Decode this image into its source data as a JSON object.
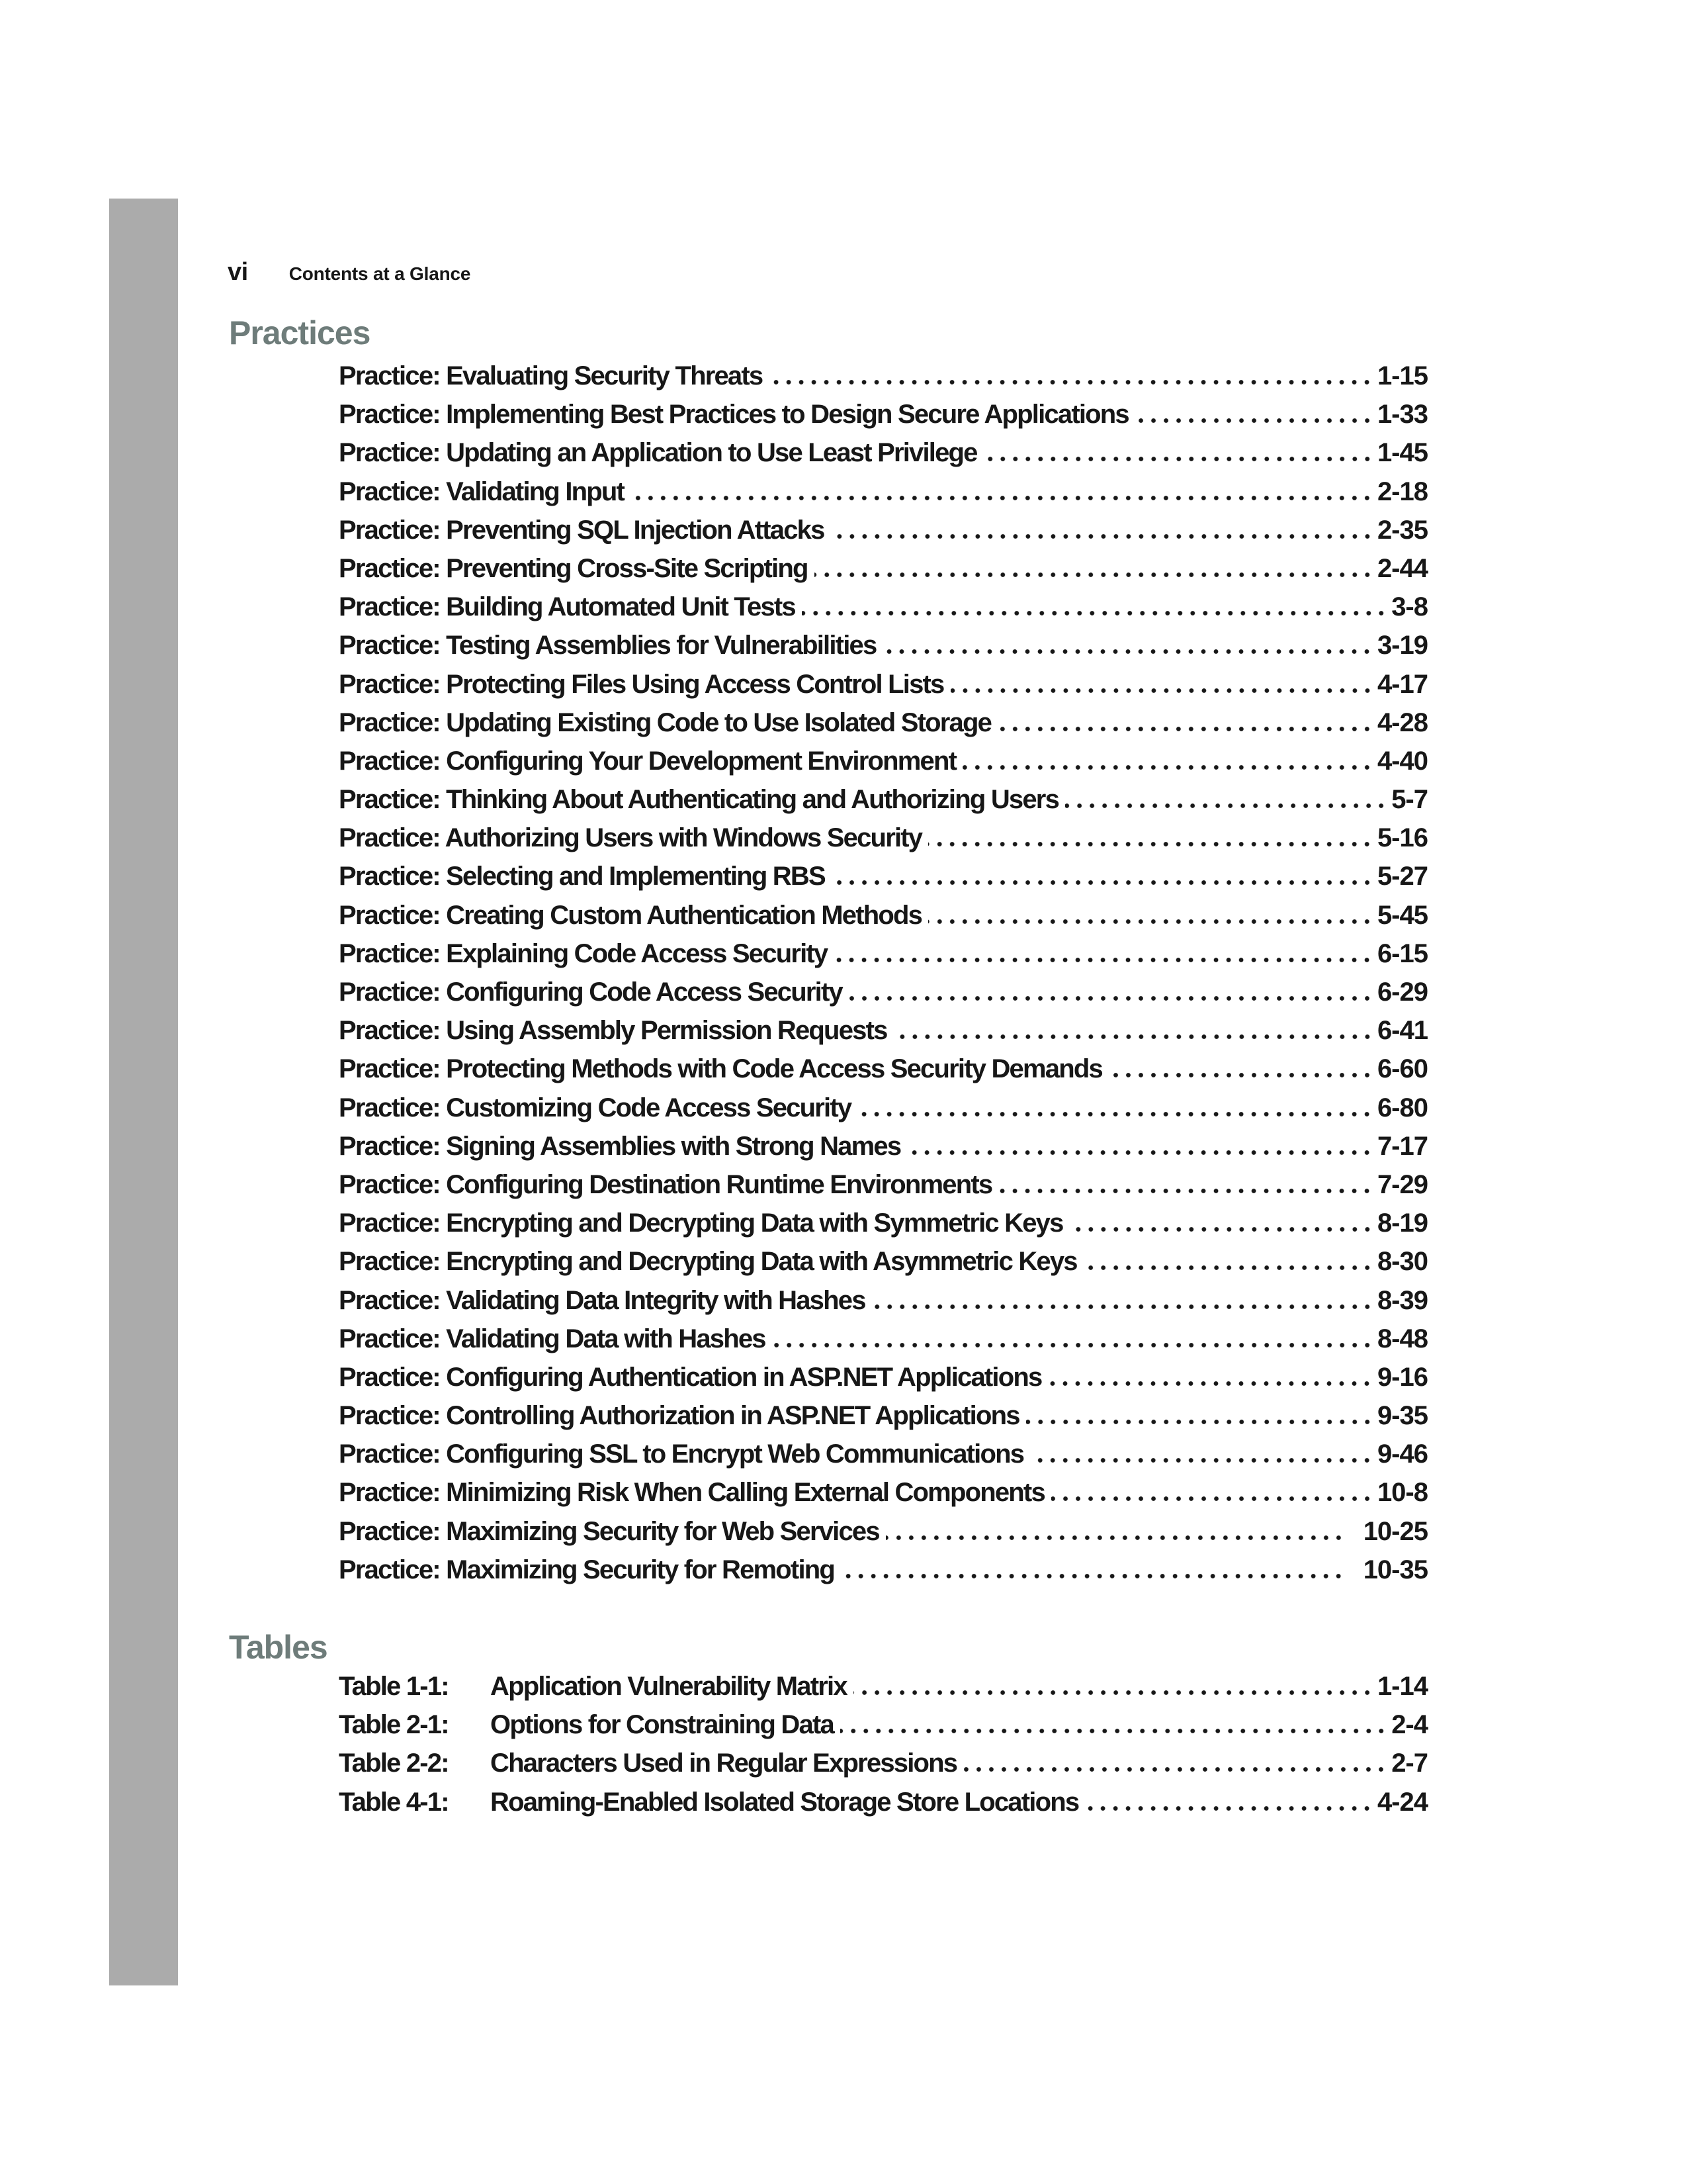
{
  "header": {
    "page_number": "vi",
    "title": "Contents at a Glance"
  },
  "practices": {
    "heading": "Practices",
    "entries": [
      {
        "title": "Practice: Evaluating Security Threats",
        "page": "1-15"
      },
      {
        "title": "Practice: Implementing Best Practices to Design Secure Applications",
        "page": "1-33"
      },
      {
        "title": "Practice: Updating an Application to Use Least Privilege",
        "page": "1-45"
      },
      {
        "title": "Practice: Validating Input",
        "page": "2-18"
      },
      {
        "title": "Practice: Preventing SQL Injection Attacks",
        "page": "2-35"
      },
      {
        "title": "Practice: Preventing Cross-Site Scripting",
        "page": "2-44"
      },
      {
        "title": "Practice: Building Automated Unit Tests",
        "page": "3-8"
      },
      {
        "title": "Practice: Testing Assemblies for Vulnerabilities",
        "page": "3-19"
      },
      {
        "title": "Practice: Protecting Files Using Access Control Lists",
        "page": "4-17"
      },
      {
        "title": "Practice: Updating Existing Code to Use Isolated Storage",
        "page": "4-28"
      },
      {
        "title": "Practice: Configuring Your Development Environment",
        "page": "4-40"
      },
      {
        "title": "Practice: Thinking About Authenticating and Authorizing Users",
        "page": "5-7"
      },
      {
        "title": "Practice: Authorizing Users with Windows Security",
        "page": "5-16"
      },
      {
        "title": "Practice: Selecting and Implementing RBS",
        "page": "5-27"
      },
      {
        "title": "Practice: Creating Custom Authentication Methods",
        "page": "5-45"
      },
      {
        "title": "Practice: Explaining Code Access Security",
        "page": "6-15"
      },
      {
        "title": "Practice: Configuring Code Access Security",
        "page": "6-29"
      },
      {
        "title": "Practice: Using Assembly Permission Requests",
        "page": "6-41"
      },
      {
        "title": "Practice: Protecting Methods with Code Access Security Demands",
        "page": "6-60"
      },
      {
        "title": "Practice: Customizing Code Access Security",
        "page": "6-80"
      },
      {
        "title": "Practice: Signing Assemblies with Strong Names",
        "page": "7-17"
      },
      {
        "title": "Practice: Configuring Destination Runtime Environments",
        "page": "7-29"
      },
      {
        "title": "Practice: Encrypting and Decrypting Data with Symmetric Keys",
        "page": "8-19"
      },
      {
        "title": "Practice: Encrypting and Decrypting Data with Asymmetric Keys",
        "page": "8-30"
      },
      {
        "title": "Practice: Validating Data Integrity with Hashes",
        "page": "8-39"
      },
      {
        "title": "Practice: Validating Data with Hashes",
        "page": "8-48"
      },
      {
        "title": "Practice: Configuring Authentication in ASP.NET Applications",
        "page": "9-16"
      },
      {
        "title": "Practice: Controlling Authorization in ASP.NET Applications",
        "page": "9-35"
      },
      {
        "title": "Practice: Configuring SSL to Encrypt Web Communications",
        "page": "9-46"
      },
      {
        "title": "Practice: Minimizing Risk When Calling External Components",
        "page": "10-8"
      },
      {
        "title": "Practice: Maximizing Security for Web Services",
        "page": "10-25"
      },
      {
        "title": "Practice: Maximizing Security for Remoting",
        "page": "10-35"
      }
    ]
  },
  "tables": {
    "heading": "Tables",
    "entries": [
      {
        "label": "Table 1-1:",
        "title": "Application Vulnerability Matrix",
        "page": "1-14"
      },
      {
        "label": "Table 2-1:",
        "title": "Options for Constraining Data",
        "page": "2-4"
      },
      {
        "label": "Table 2-2:",
        "title": "Characters Used in Regular Expressions",
        "page": "2-7"
      },
      {
        "label": "Table 4-1:",
        "title": "Roaming-Enabled Isolated Storage Store Locations",
        "page": "4-24"
      }
    ]
  },
  "colors": {
    "section_heading": "#6e7c7a",
    "margin_bar": "#ababab",
    "body_text": "#171717",
    "background": "#ffffff"
  }
}
